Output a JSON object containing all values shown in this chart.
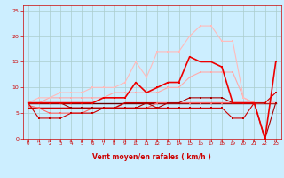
{
  "background_color": "#cceeff",
  "grid_color": "#aacccc",
  "xlabel": "Vent moyen/en rafales ( km/h )",
  "xlabel_color": "#cc0000",
  "tick_color": "#cc0000",
  "xlim": [
    -0.5,
    23.5
  ],
  "ylim": [
    0,
    26
  ],
  "yticks": [
    0,
    5,
    10,
    15,
    20,
    25
  ],
  "xticks": [
    0,
    1,
    2,
    3,
    4,
    5,
    6,
    7,
    8,
    9,
    10,
    11,
    12,
    13,
    14,
    15,
    16,
    17,
    18,
    19,
    20,
    21,
    22,
    23
  ],
  "lines": [
    {
      "x": [
        0,
        1,
        2,
        3,
        4,
        5,
        6,
        7,
        8,
        9,
        10,
        11,
        12,
        13,
        14,
        15,
        16,
        17,
        18,
        19,
        20,
        21,
        22,
        23
      ],
      "y": [
        7,
        4,
        4,
        4,
        5,
        5,
        5,
        6,
        6,
        6,
        6,
        6,
        6,
        6,
        6,
        6,
        6,
        6,
        6,
        4,
        4,
        7,
        7,
        9
      ],
      "color": "#cc0000",
      "lw": 0.8,
      "marker": "s",
      "ms": 1.5,
      "zorder": 5
    },
    {
      "x": [
        0,
        1,
        2,
        3,
        4,
        5,
        6,
        7,
        8,
        9,
        10,
        11,
        12,
        13,
        14,
        15,
        16,
        17,
        18,
        19,
        20,
        21,
        22,
        23
      ],
      "y": [
        7,
        7,
        7,
        7,
        7,
        7,
        7,
        7,
        7,
        7,
        7,
        7,
        7,
        7,
        7,
        7,
        7,
        7,
        7,
        7,
        7,
        7,
        7,
        7
      ],
      "color": "#660000",
      "lw": 1.0,
      "marker": null,
      "ms": 0,
      "zorder": 2
    },
    {
      "x": [
        0,
        1,
        2,
        3,
        4,
        5,
        6,
        7,
        8,
        9,
        10,
        11,
        12,
        13,
        14,
        15,
        16,
        17,
        18,
        19,
        20,
        21,
        22,
        23
      ],
      "y": [
        6,
        6,
        6,
        6,
        6,
        6,
        6,
        6,
        6,
        7,
        7,
        7,
        7,
        7,
        7,
        7,
        7,
        7,
        7,
        7,
        7,
        7,
        7,
        7
      ],
      "color": "#cc0000",
      "lw": 1.0,
      "marker": null,
      "ms": 0,
      "zorder": 2
    },
    {
      "x": [
        0,
        1,
        2,
        3,
        4,
        5,
        6,
        7,
        8,
        9,
        10,
        11,
        12,
        13,
        14,
        15,
        16,
        17,
        18,
        19,
        20,
        21,
        22,
        23
      ],
      "y": [
        6.5,
        6,
        5,
        5,
        5,
        5,
        6,
        6,
        6,
        6,
        6,
        6,
        7,
        7,
        7,
        7,
        7,
        7,
        7,
        7,
        7,
        7,
        7,
        7
      ],
      "color": "#ff6666",
      "lw": 0.8,
      "marker": "s",
      "ms": 1.5,
      "zorder": 3
    },
    {
      "x": [
        0,
        1,
        2,
        3,
        4,
        5,
        6,
        7,
        8,
        9,
        10,
        11,
        12,
        13,
        14,
        15,
        16,
        17,
        18,
        19,
        20,
        21,
        22,
        23
      ],
      "y": [
        7,
        7,
        7,
        7,
        6,
        6,
        6,
        6,
        6,
        6,
        6,
        7,
        6,
        7,
        7,
        8,
        8,
        8,
        8,
        7,
        7,
        7,
        0,
        7
      ],
      "color": "#aa0000",
      "lw": 0.8,
      "marker": "s",
      "ms": 1.5,
      "zorder": 4
    },
    {
      "x": [
        0,
        1,
        2,
        3,
        4,
        5,
        6,
        7,
        8,
        9,
        10,
        11,
        12,
        13,
        14,
        15,
        16,
        17,
        18,
        19,
        20,
        21,
        22,
        23
      ],
      "y": [
        7,
        7,
        7,
        7,
        7,
        7,
        7,
        8,
        8,
        8,
        11,
        9,
        10,
        11,
        11,
        16,
        15,
        15,
        14,
        7,
        7,
        7,
        0,
        15
      ],
      "color": "#ee0000",
      "lw": 1.2,
      "marker": "s",
      "ms": 2.0,
      "zorder": 6
    },
    {
      "x": [
        0,
        1,
        2,
        3,
        4,
        5,
        6,
        7,
        8,
        9,
        10,
        11,
        12,
        13,
        14,
        15,
        16,
        17,
        18,
        19,
        20,
        21,
        22,
        23
      ],
      "y": [
        7,
        7,
        8,
        8,
        8,
        8,
        8,
        8,
        9,
        9,
        9,
        9,
        9,
        10,
        10,
        12,
        13,
        13,
        13,
        13,
        8,
        7,
        7,
        9
      ],
      "color": "#ffaaaa",
      "lw": 0.8,
      "marker": "s",
      "ms": 1.5,
      "zorder": 3
    },
    {
      "x": [
        0,
        1,
        2,
        3,
        4,
        5,
        6,
        7,
        8,
        9,
        10,
        11,
        12,
        13,
        14,
        15,
        16,
        17,
        18,
        19,
        20,
        21,
        22,
        23
      ],
      "y": [
        7,
        8,
        8,
        9,
        9,
        9,
        10,
        10,
        10,
        11,
        15,
        12,
        17,
        17,
        17,
        20,
        22,
        22,
        19,
        19,
        8,
        7,
        7,
        7
      ],
      "color": "#ffbbbb",
      "lw": 0.8,
      "marker": "s",
      "ms": 1.5,
      "zorder": 3
    }
  ]
}
